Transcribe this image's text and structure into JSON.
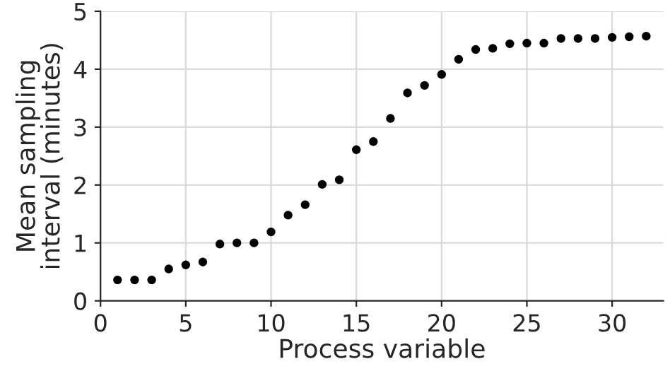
{
  "chart_data": {
    "type": "scatter",
    "xlabel": "Process variable",
    "ylabel": "Mean sampling\ninterval (minutes)",
    "x": [
      1,
      2,
      3,
      4,
      5,
      6,
      7,
      8,
      9,
      10,
      11,
      12,
      13,
      14,
      15,
      16,
      17,
      18,
      19,
      20,
      21,
      22,
      23,
      24,
      25,
      26,
      27,
      28,
      29,
      30,
      31,
      32
    ],
    "series": [
      {
        "color": "#000000",
        "values": [
          0.36,
          0.36,
          0.36,
          0.55,
          0.62,
          0.67,
          0.98,
          1.0,
          1.0,
          1.19,
          1.48,
          1.66,
          2.01,
          2.09,
          2.61,
          2.75,
          3.15,
          3.59,
          3.72,
          3.91,
          4.17,
          4.34,
          4.36,
          4.44,
          4.45,
          4.45,
          4.53,
          4.53,
          4.53,
          4.55,
          4.56,
          4.57
        ]
      }
    ],
    "xlim": [
      0,
      33
    ],
    "ylim": [
      0,
      5
    ],
    "xticks": [
      0,
      5,
      10,
      15,
      20,
      25,
      30
    ],
    "yticks": [
      0,
      1,
      2,
      3,
      4,
      5
    ],
    "grid": true,
    "marker": "circle"
  }
}
